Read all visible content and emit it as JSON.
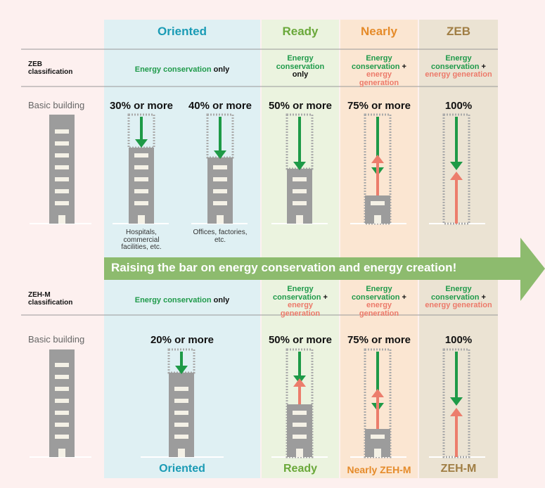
{
  "columns": [
    "Oriented",
    "Ready",
    "Nearly",
    "ZEB"
  ],
  "zeb": {
    "label": "ZEB classification",
    "cells": [
      {
        "conservation": "Energy conservation",
        "joiner": "only"
      },
      {
        "conservation": "Energy conservation",
        "joiner": "only"
      },
      {
        "conservation": "Energy conservation",
        "joiner": "+",
        "generation": "energy generation"
      },
      {
        "conservation": "Energy conservation",
        "joiner": "+",
        "generation": "energy generation"
      }
    ],
    "basic": "Basic building",
    "levels": [
      "30% or more",
      "40% or more",
      "50% or more",
      "75% or more",
      "100%"
    ],
    "captions": [
      "Hospitals, commercial facilities, etc.",
      "Offices, factories, etc."
    ]
  },
  "banner": "Raising the bar on energy conservation and energy creation!",
  "zehm": {
    "label": "ZEH-M classification",
    "cells": [
      {
        "conservation": "Energy conservation",
        "joiner": "only"
      },
      {
        "conservation": "Energy conservation",
        "joiner": "+",
        "generation": "energy generation"
      },
      {
        "conservation": "Energy conservation",
        "joiner": "+",
        "generation": "energy generation"
      },
      {
        "conservation": "Energy conservation",
        "joiner": "+",
        "generation": "energy generation"
      }
    ],
    "basic": "Basic building",
    "levels": [
      "20% or more",
      "50% or more",
      "75% or more",
      "100%"
    ],
    "footer": [
      "Oriented",
      "Ready",
      "Nearly ZEH-M",
      "ZEH-M"
    ]
  }
}
